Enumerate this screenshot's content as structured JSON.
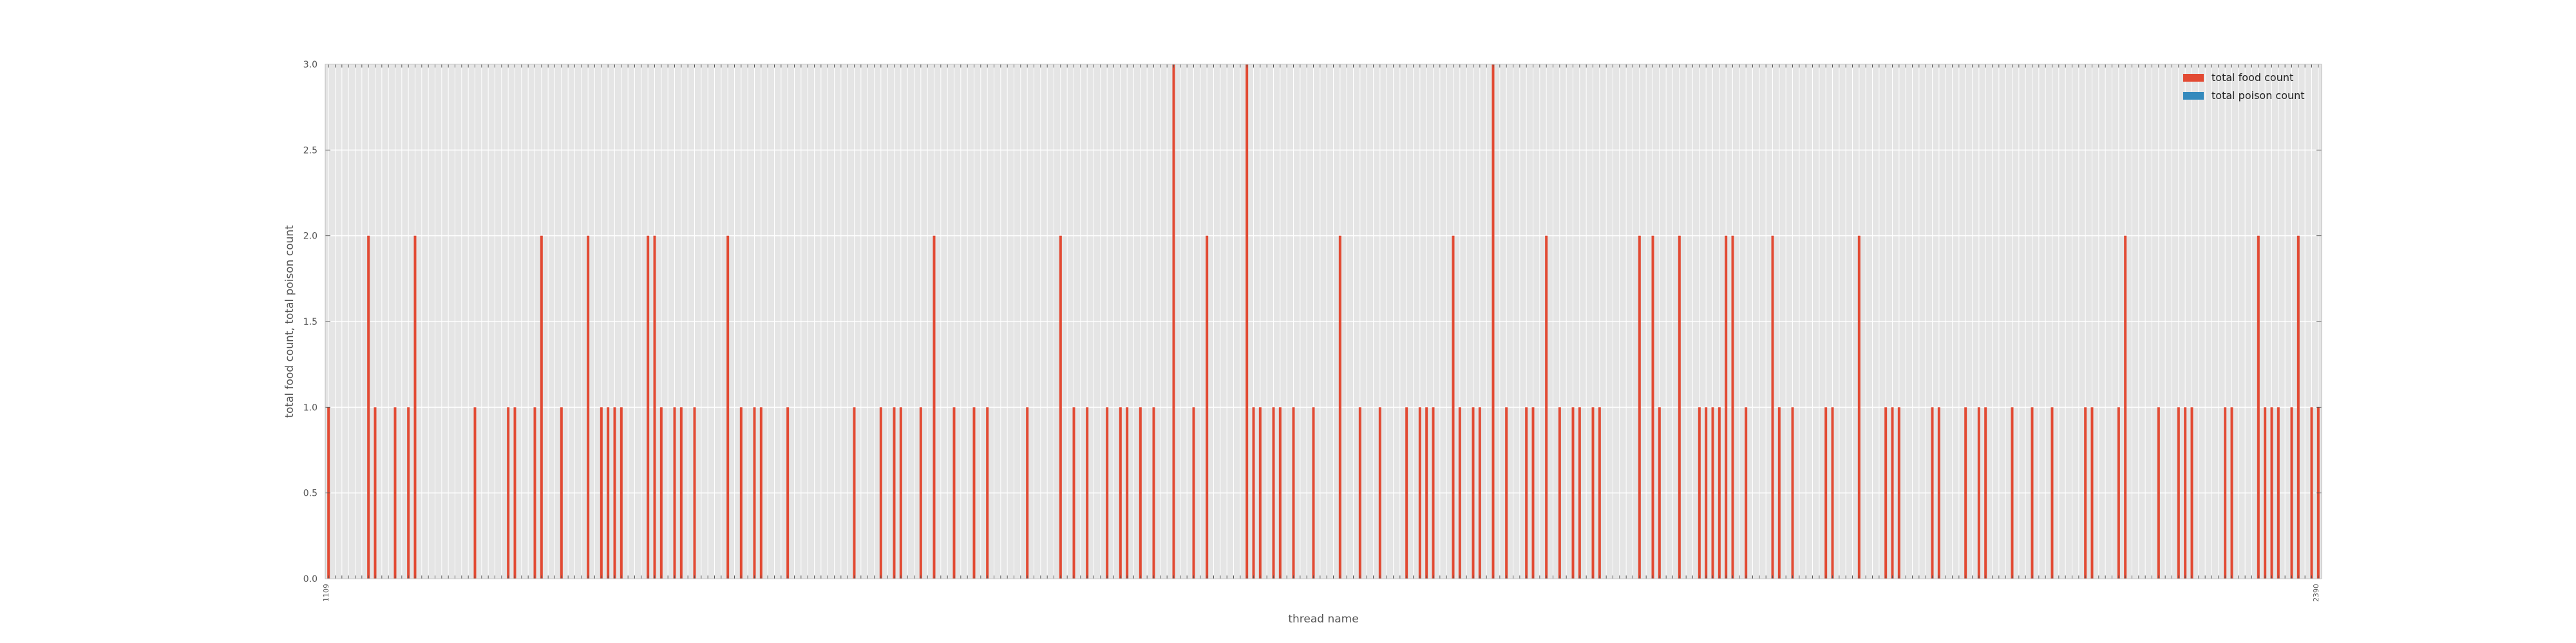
{
  "chart_data": {
    "type": "bar",
    "xlabel": "thread name",
    "ylabel": "total food count, total poison count",
    "ylim": [
      0,
      3.0
    ],
    "y_ticks": [
      "0.0",
      "0.5",
      "1.0",
      "1.5",
      "2.0",
      "2.5",
      "3.0"
    ],
    "y_tick_values": [
      0,
      0.5,
      1.0,
      1.5,
      2.0,
      2.5,
      3.0
    ],
    "grid": true,
    "legend_position": "top-right",
    "category_count": 300,
    "categories_first_label": "1109",
    "categories_last_label": "2390",
    "series": [
      {
        "name": "total food count",
        "color": "#e24a33",
        "points": [
          [
            1,
            1
          ],
          [
            7,
            2
          ],
          [
            8,
            1
          ],
          [
            11,
            1
          ],
          [
            13,
            1
          ],
          [
            14,
            2
          ],
          [
            23,
            1
          ],
          [
            28,
            1
          ],
          [
            29,
            1
          ],
          [
            32,
            1
          ],
          [
            33,
            2
          ],
          [
            36,
            1
          ],
          [
            40,
            2
          ],
          [
            42,
            1
          ],
          [
            43,
            1
          ],
          [
            44,
            1
          ],
          [
            45,
            1
          ],
          [
            49,
            2
          ],
          [
            50,
            2
          ],
          [
            51,
            1
          ],
          [
            53,
            1
          ],
          [
            54,
            1
          ],
          [
            56,
            1
          ],
          [
            61,
            2
          ],
          [
            63,
            1
          ],
          [
            65,
            1
          ],
          [
            66,
            1
          ],
          [
            70,
            1
          ],
          [
            80,
            1
          ],
          [
            84,
            1
          ],
          [
            86,
            1
          ],
          [
            87,
            1
          ],
          [
            90,
            1
          ],
          [
            92,
            2
          ],
          [
            95,
            1
          ],
          [
            98,
            1
          ],
          [
            100,
            1
          ],
          [
            106,
            1
          ],
          [
            111,
            2
          ],
          [
            113,
            1
          ],
          [
            115,
            1
          ],
          [
            118,
            1
          ],
          [
            120,
            1
          ],
          [
            121,
            1
          ],
          [
            123,
            1
          ],
          [
            125,
            1
          ],
          [
            128,
            3
          ],
          [
            131,
            1
          ],
          [
            133,
            2
          ],
          [
            139,
            3
          ],
          [
            140,
            1
          ],
          [
            141,
            1
          ],
          [
            143,
            1
          ],
          [
            144,
            1
          ],
          [
            146,
            1
          ],
          [
            149,
            1
          ],
          [
            153,
            2
          ],
          [
            156,
            1
          ],
          [
            159,
            1
          ],
          [
            163,
            1
          ],
          [
            165,
            1
          ],
          [
            166,
            1
          ],
          [
            167,
            1
          ],
          [
            170,
            2
          ],
          [
            171,
            1
          ],
          [
            173,
            1
          ],
          [
            174,
            1
          ],
          [
            176,
            3
          ],
          [
            178,
            1
          ],
          [
            181,
            1
          ],
          [
            182,
            1
          ],
          [
            184,
            2
          ],
          [
            186,
            1
          ],
          [
            188,
            1
          ],
          [
            189,
            1
          ],
          [
            191,
            1
          ],
          [
            192,
            1
          ],
          [
            198,
            2
          ],
          [
            200,
            2
          ],
          [
            201,
            1
          ],
          [
            204,
            2
          ],
          [
            207,
            1
          ],
          [
            208,
            1
          ],
          [
            209,
            1
          ],
          [
            210,
            1
          ],
          [
            211,
            2
          ],
          [
            212,
            2
          ],
          [
            214,
            1
          ],
          [
            218,
            2
          ],
          [
            219,
            1
          ],
          [
            221,
            1
          ],
          [
            226,
            1
          ],
          [
            227,
            1
          ],
          [
            231,
            2
          ],
          [
            235,
            1
          ],
          [
            236,
            1
          ],
          [
            237,
            1
          ],
          [
            242,
            1
          ],
          [
            243,
            1
          ],
          [
            247,
            1
          ],
          [
            249,
            1
          ],
          [
            250,
            1
          ],
          [
            254,
            1
          ],
          [
            257,
            1
          ],
          [
            260,
            1
          ],
          [
            265,
            1
          ],
          [
            266,
            1
          ],
          [
            270,
            1
          ],
          [
            271,
            2
          ],
          [
            276,
            1
          ],
          [
            279,
            1
          ],
          [
            280,
            1
          ],
          [
            281,
            1
          ],
          [
            286,
            1
          ],
          [
            287,
            1
          ],
          [
            291,
            2
          ],
          [
            292,
            1
          ],
          [
            293,
            1
          ],
          [
            294,
            1
          ],
          [
            296,
            1
          ],
          [
            297,
            2
          ],
          [
            299,
            1
          ],
          [
            300,
            1
          ]
        ]
      },
      {
        "name": "total poison count",
        "color": "#348abd",
        "points": []
      }
    ]
  }
}
